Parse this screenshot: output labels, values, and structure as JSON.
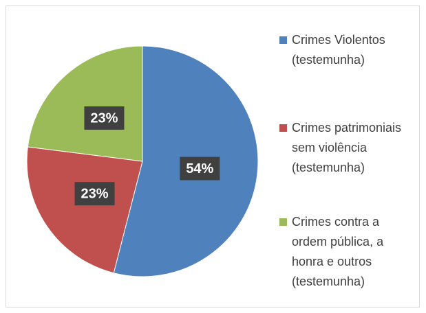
{
  "chart_data": {
    "type": "pie",
    "categories": [
      "Crimes Violentos (testemunha)",
      "Crimes patrimoniais sem violência (testemunha)",
      "Crimes contra a ordem pública, a honra e outros (testemunha)"
    ],
    "values": [
      54,
      23,
      23
    ],
    "value_labels": [
      "54%",
      "23%",
      "23%"
    ],
    "colors": [
      "#4f81bd",
      "#c0504d",
      "#9bbb59"
    ],
    "legend": "right"
  }
}
